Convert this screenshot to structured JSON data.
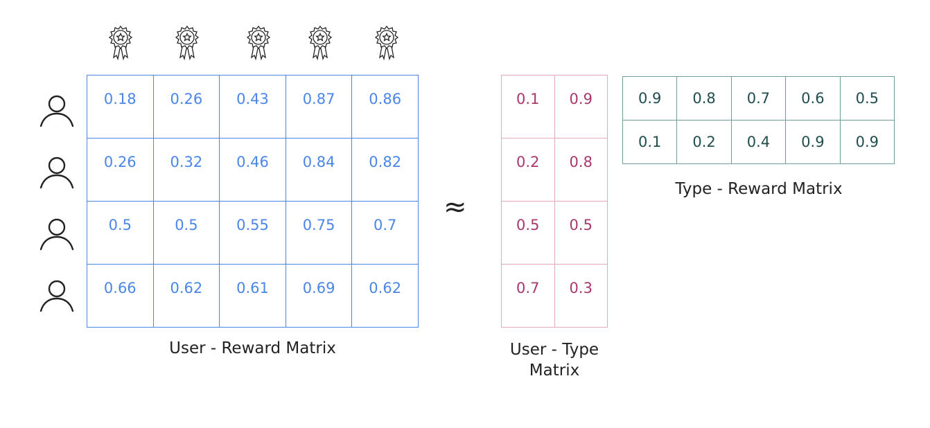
{
  "user_reward": {
    "caption": "User - Reward Matrix",
    "rows": [
      [
        "0.18",
        "0.26",
        "0.43",
        "0.87",
        "0.86"
      ],
      [
        "0.26",
        "0.32",
        "0.46",
        "0.84",
        "0.82"
      ],
      [
        "0.5",
        "0.5",
        "0.55",
        "0.75",
        "0.7"
      ],
      [
        "0.66",
        "0.62",
        "0.61",
        "0.69",
        "0.62"
      ]
    ]
  },
  "approx_symbol": "≈",
  "user_type": {
    "caption": "User - Type Matrix",
    "rows": [
      [
        "0.1",
        "0.9"
      ],
      [
        "0.2",
        "0.8"
      ],
      [
        "0.5",
        "0.5"
      ],
      [
        "0.7",
        "0.3"
      ]
    ]
  },
  "type_reward": {
    "caption": "Type - Reward Matrix",
    "rows": [
      [
        "0.9",
        "0.8",
        "0.7",
        "0.6",
        "0.5"
      ],
      [
        "0.1",
        "0.2",
        "0.4",
        "0.9",
        "0.9"
      ]
    ]
  },
  "icons": {
    "column_header": "award-ribbon-icon",
    "row_header": "user-icon"
  },
  "colors": {
    "user_reward": "#4a86e8",
    "user_type": "#a8386b",
    "type_reward": "#1f4e4c"
  }
}
